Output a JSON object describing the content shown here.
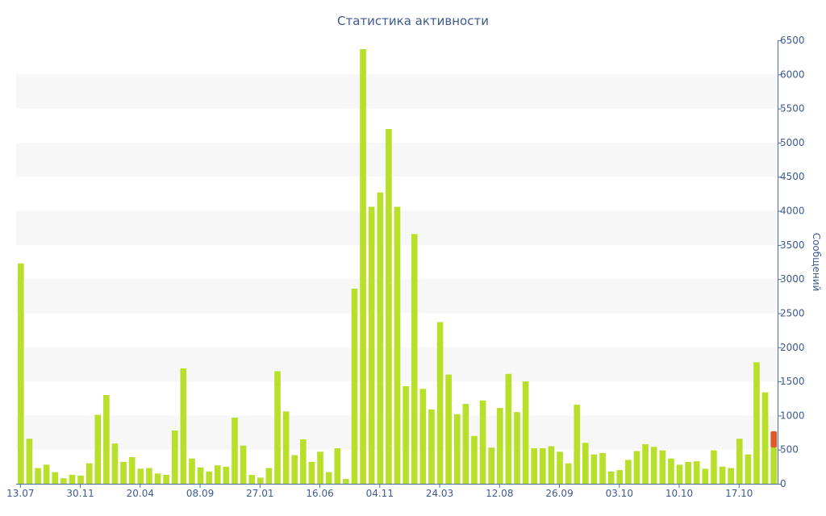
{
  "chart_data": {
    "type": "bar",
    "title": "Статистика активности",
    "xlabel": "",
    "ylabel": "Сообщений",
    "ylim": [
      0,
      6500
    ],
    "y_ticks": [
      0,
      500,
      1000,
      1500,
      2000,
      2500,
      3000,
      3500,
      4000,
      4500,
      5000,
      5500,
      6000,
      6500
    ],
    "y_axis_side": "right",
    "grid": "alternating horizontal bands",
    "x_tick_labels": [
      {
        "index": 0,
        "label": "13.07"
      },
      {
        "index": 7,
        "label": "30.11"
      },
      {
        "index": 14,
        "label": "20.04"
      },
      {
        "index": 21,
        "label": "08.09"
      },
      {
        "index": 28,
        "label": "27.01"
      },
      {
        "index": 35,
        "label": "16.06"
      },
      {
        "index": 42,
        "label": "04.11"
      },
      {
        "index": 49,
        "label": "24.03"
      },
      {
        "index": 56,
        "label": "12.08"
      },
      {
        "index": 63,
        "label": "26.09"
      },
      {
        "index": 70,
        "label": "03.10"
      },
      {
        "index": 77,
        "label": "10.10"
      },
      {
        "index": 84,
        "label": "17.10"
      }
    ],
    "colors": {
      "bar": "#b8e02a",
      "highlight": "#e0582a",
      "text": "#3e5a8e",
      "band": "#f7f7f7"
    },
    "values": [
      3230,
      660,
      230,
      280,
      170,
      80,
      130,
      120,
      300,
      1010,
      1300,
      590,
      320,
      390,
      220,
      230,
      150,
      130,
      780,
      1690,
      370,
      240,
      180,
      270,
      250,
      970,
      560,
      130,
      90,
      230,
      1650,
      1060,
      420,
      650,
      320,
      470,
      170,
      520,
      70,
      2860,
      6370,
      4060,
      4270,
      5200,
      4060,
      1430,
      3660,
      1390,
      1090,
      2370,
      1600,
      1020,
      1170,
      700,
      1220,
      530,
      1110,
      1610,
      1050,
      1500,
      520,
      520,
      550,
      470,
      300,
      1160,
      600,
      430,
      450,
      180,
      200,
      350,
      480,
      580,
      540,
      490,
      370,
      280,
      320,
      330,
      220,
      490,
      250,
      230,
      660,
      430,
      1780,
      1340,
      530
    ],
    "last_bar_highlight": [
      530,
      770
    ]
  }
}
